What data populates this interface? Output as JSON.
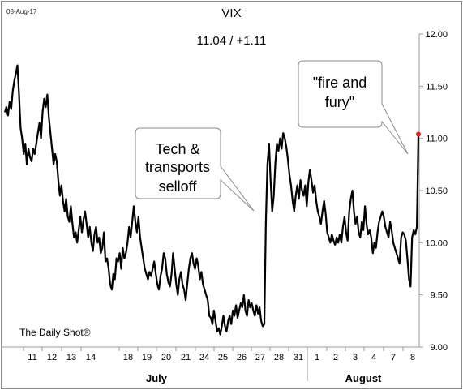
{
  "header": {
    "date_stamp": "08-Aug-17",
    "title": "VIX",
    "subtitle": "11.04  /  +1.11"
  },
  "source": "The Daily Shot®",
  "annotations": [
    {
      "text_lines": [
        "Tech &",
        "transports",
        "selloff"
      ]
    },
    {
      "text_lines": [
        "\"fire and",
        "fury\""
      ]
    }
  ],
  "colors": {
    "line": "#000000",
    "last_point": "#e0201b",
    "grid_axis": "#9a9a9a",
    "callout_border": "#8a8a8a"
  },
  "chart_data": {
    "type": "line",
    "title": "VIX",
    "subtitle": "11.04  /  +1.11",
    "y_axis": {
      "side": "right",
      "ylim": [
        9.0,
        12.0
      ],
      "ticks": [
        9.0,
        9.5,
        10.0,
        10.5,
        11.0,
        11.5,
        12.0
      ],
      "tick_labels": [
        "9.00",
        "9.50",
        "10.00",
        "10.50",
        "11.00",
        "11.50",
        "12.00"
      ]
    },
    "x_axis": {
      "day_labels": [
        "11",
        "12",
        "13",
        "14",
        "18",
        "19",
        "20",
        "21",
        "24",
        "25",
        "26",
        "27",
        "28",
        "31",
        "1",
        "2",
        "3",
        "4",
        "7",
        "8"
      ],
      "month_labels": [
        "July",
        "August"
      ]
    },
    "last_value": 11.04,
    "change": 1.11,
    "series": [
      {
        "values": [
          11.25,
          11.3,
          11.22,
          11.35,
          11.28,
          11.45,
          11.55,
          11.62,
          11.7,
          11.42,
          11.1,
          11.0,
          10.85,
          10.95,
          10.75,
          10.9,
          10.82,
          10.78,
          10.9,
          10.85,
          10.95,
          11.05,
          11.15,
          11.0,
          11.25,
          11.38,
          11.3,
          11.42,
          11.2,
          11.05,
          10.9,
          10.75,
          10.85,
          10.78,
          10.6,
          10.45,
          10.55,
          10.4,
          10.3,
          10.42,
          10.25,
          10.2,
          10.35,
          10.18,
          10.05,
          10.1,
          10.0,
          10.12,
          10.25,
          10.1,
          10.22,
          10.3,
          10.18,
          10.05,
          10.15,
          10.0,
          9.92,
          10.08,
          10.15,
          10.0,
          10.05,
          9.9,
          9.95,
          10.1,
          9.82,
          9.85,
          9.75,
          9.6,
          9.55,
          9.7,
          9.65,
          9.85,
          9.82,
          9.9,
          9.75,
          9.95,
          9.85,
          9.9,
          10.0,
          10.15,
          10.05,
          10.2,
          10.35,
          10.2,
          10.1,
          10.25,
          10.05,
          9.95,
          9.85,
          9.75,
          9.7,
          9.65,
          9.72,
          9.68,
          9.75,
          9.82,
          9.7,
          9.6,
          9.55,
          9.68,
          9.75,
          9.9,
          9.85,
          9.7,
          9.62,
          9.58,
          9.7,
          9.9,
          9.75,
          9.6,
          9.5,
          9.65,
          9.72,
          9.6,
          9.55,
          9.45,
          9.6,
          9.75,
          9.85,
          9.9,
          9.8,
          9.75,
          9.85,
          9.78,
          9.65,
          9.72,
          9.6,
          9.55,
          9.5,
          9.45,
          9.3,
          9.28,
          9.22,
          9.35,
          9.25,
          9.15,
          9.18,
          9.12,
          9.2,
          9.3,
          9.2,
          9.15,
          9.25,
          9.3,
          9.22,
          9.35,
          9.3,
          9.4,
          9.28,
          9.35,
          9.42,
          9.38,
          9.5,
          9.35,
          9.3,
          9.45,
          9.38,
          9.42,
          9.35,
          9.3,
          9.4,
          9.32,
          9.38,
          9.25,
          9.2,
          9.22,
          10.2,
          10.75,
          10.95,
          10.6,
          10.3,
          10.45,
          10.75,
          10.95,
          10.88,
          11.0,
          10.9,
          11.05,
          11.0,
          10.92,
          10.8,
          10.65,
          10.55,
          10.4,
          10.3,
          10.45,
          10.55,
          10.42,
          10.6,
          10.5,
          10.45,
          10.55,
          10.35,
          10.58,
          10.7,
          10.6,
          10.48,
          10.55,
          10.4,
          10.3,
          10.25,
          10.18,
          10.3,
          10.4,
          10.28,
          10.1,
          10.05,
          10.0,
          10.08,
          10.02,
          9.98,
          10.05,
          10.0,
          10.08,
          10.0,
          10.15,
          10.25,
          10.1,
          10.02,
          10.3,
          10.42,
          10.5,
          10.3,
          10.18,
          10.25,
          10.1,
          10.05,
          10.2,
          10.12,
          10.35,
          10.18,
          10.08,
          10.12,
          10.05,
          9.9,
          10.0,
          9.95,
          10.1,
          10.2,
          10.25,
          10.3,
          10.25,
          10.15,
          10.1,
          10.05,
          10.2,
          10.12,
          10.0,
          9.95,
          9.9,
          9.85,
          9.8,
          10.05,
          10.1,
          10.08,
          10.02,
          9.85,
          9.65,
          9.58,
          10.05,
          10.12,
          10.08,
          10.15,
          11.04
        ]
      }
    ],
    "grid": false,
    "legend": "none"
  }
}
